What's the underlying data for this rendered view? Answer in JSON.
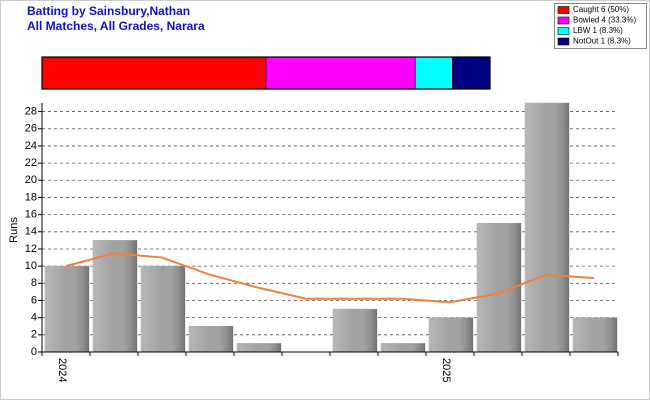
{
  "chart_data": [
    {
      "type": "bar",
      "title": "Batting by Sainsbury,Nathan",
      "subtitle": "All Matches, All Grades, Narara",
      "y_label": "Runs",
      "categories": [
        "2024",
        null,
        null,
        null,
        null,
        null,
        null,
        null,
        "2025",
        null,
        null,
        null
      ],
      "series": [
        {
          "type": "bar",
          "color": "#a0a0a0",
          "colors": [
            "#a0a0a0",
            "#a0a0a0",
            "#a0a0a0",
            "#a0a0a0",
            "#a0a0a0",
            "#2e8b2e",
            "#a0a0a0",
            "#a0a0a0",
            "#a0a0a0",
            "#a0a0a0",
            "#a0a0a0",
            "#a0a0a0"
          ],
          "values": [
            10,
            13,
            10,
            3,
            1,
            0,
            5,
            1,
            4,
            15,
            29,
            4
          ]
        },
        {
          "type": "line",
          "color": "#f08040",
          "values": [
            10,
            11.5,
            11,
            9,
            7.5,
            6.2,
            6.2,
            6.2,
            5.8,
            6.8,
            9,
            8.6
          ]
        }
      ],
      "ylim": [
        0,
        29
      ],
      "yticks": [
        0,
        2,
        4,
        6,
        8,
        10,
        12,
        14,
        16,
        18,
        20,
        22,
        24,
        26,
        28
      ],
      "grid": true
    },
    {
      "type": "stacked-bar",
      "legend": "top-right",
      "xlim": [
        0,
        100
      ],
      "series": [
        {
          "name": "Caught 6 (50%)",
          "color": "#ff0000",
          "values": [
            50
          ]
        },
        {
          "name": "Bowled 4 (33.3%)",
          "color": "#ff00ff",
          "values": [
            33.3
          ]
        },
        {
          "name": "LBW 1 (8.3%)",
          "color": "#00ffff",
          "values": [
            8.3
          ]
        },
        {
          "name": "NotOut 1 (8.3%)",
          "color": "#000080",
          "values": [
            8.3
          ]
        }
      ]
    }
  ]
}
